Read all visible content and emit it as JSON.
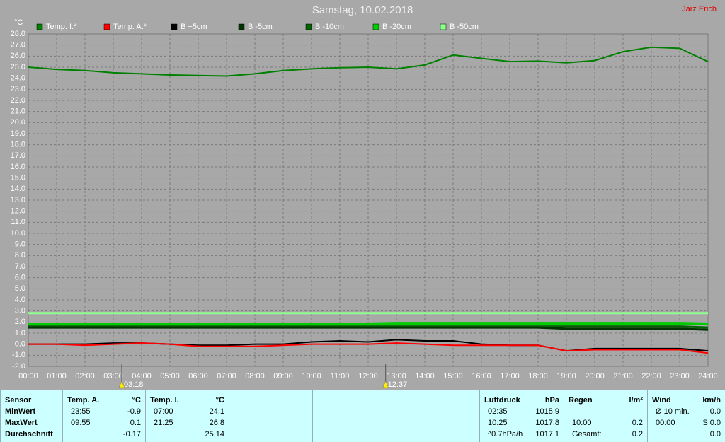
{
  "chart_data": {
    "type": "line",
    "title": "Samstag, 10.02.2018",
    "corner_label": "Jarz Erich",
    "y_unit": "°C",
    "x": [
      0,
      1,
      2,
      3,
      4,
      5,
      6,
      7,
      8,
      9,
      10,
      11,
      12,
      13,
      14,
      15,
      16,
      17,
      18,
      19,
      20,
      21,
      22,
      23,
      24
    ],
    "xlim": [
      0,
      24
    ],
    "xticks": [
      {
        "value": 0,
        "label": "00:00"
      },
      {
        "value": 1,
        "label": "01:00"
      },
      {
        "value": 2,
        "label": "02:00"
      },
      {
        "value": 3,
        "label": "03:00"
      },
      {
        "value": 4,
        "label": "04:00"
      },
      {
        "value": 5,
        "label": "05:00"
      },
      {
        "value": 6,
        "label": "06:00"
      },
      {
        "value": 7,
        "label": "07:00"
      },
      {
        "value": 8,
        "label": "08:00"
      },
      {
        "value": 9,
        "label": "09:00"
      },
      {
        "value": 10,
        "label": "10:00"
      },
      {
        "value": 11,
        "label": "11:00"
      },
      {
        "value": 12,
        "label": "12:00"
      },
      {
        "value": 13,
        "label": "13:00"
      },
      {
        "value": 14,
        "label": "14:00"
      },
      {
        "value": 15,
        "label": "15:00"
      },
      {
        "value": 16,
        "label": "16:00"
      },
      {
        "value": 17,
        "label": "17:00"
      },
      {
        "value": 18,
        "label": "18:00"
      },
      {
        "value": 19,
        "label": "19:00"
      },
      {
        "value": 20,
        "label": "20:00"
      },
      {
        "value": 21,
        "label": "21:00"
      },
      {
        "value": 22,
        "label": "22:00"
      },
      {
        "value": 23,
        "label": "23:00"
      },
      {
        "value": 24,
        "label": "24:00"
      }
    ],
    "ylim": [
      -2,
      28
    ],
    "yticks": [
      {
        "value": -2,
        "label": "-2.0"
      },
      {
        "value": -1,
        "label": "-1.0"
      },
      {
        "value": 0,
        "label": "0.0"
      },
      {
        "value": 1,
        "label": "1.0"
      },
      {
        "value": 2,
        "label": "2.0"
      },
      {
        "value": 3,
        "label": "3.0"
      },
      {
        "value": 4,
        "label": "4.0"
      },
      {
        "value": 5,
        "label": "5.0"
      },
      {
        "value": 6,
        "label": "6.0"
      },
      {
        "value": 7,
        "label": "7.0"
      },
      {
        "value": 8,
        "label": "8.0"
      },
      {
        "value": 9,
        "label": "9.0"
      },
      {
        "value": 10,
        "label": "10.0"
      },
      {
        "value": 11,
        "label": "11.0"
      },
      {
        "value": 12,
        "label": "12.0"
      },
      {
        "value": 13,
        "label": "13.0"
      },
      {
        "value": 14,
        "label": "14.0"
      },
      {
        "value": 15,
        "label": "15.0"
      },
      {
        "value": 16,
        "label": "16.0"
      },
      {
        "value": 17,
        "label": "17.0"
      },
      {
        "value": 18,
        "label": "18.0"
      },
      {
        "value": 19,
        "label": "19.0"
      },
      {
        "value": 20,
        "label": "20.0"
      },
      {
        "value": 21,
        "label": "21.0"
      },
      {
        "value": 22,
        "label": "22.0"
      },
      {
        "value": 23,
        "label": "23.0"
      },
      {
        "value": 24,
        "label": "24.0"
      },
      {
        "value": 25,
        "label": "25.0"
      },
      {
        "value": 26,
        "label": "26.0"
      },
      {
        "value": 27,
        "label": "27.0"
      },
      {
        "value": 28,
        "label": "28.0"
      }
    ],
    "grid": true,
    "legend": "top",
    "series": [
      {
        "name": "Temp. I.*",
        "color": "#008000",
        "values": [
          25.0,
          24.8,
          24.7,
          24.5,
          24.4,
          24.3,
          24.25,
          24.2,
          24.4,
          24.7,
          24.85,
          24.95,
          25.0,
          24.85,
          25.2,
          26.1,
          25.8,
          25.5,
          25.55,
          25.4,
          25.6,
          26.4,
          26.8,
          26.7,
          25.5
        ]
      },
      {
        "name": "Temp. A.*",
        "color": "#ff0000",
        "values": [
          0.0,
          0.0,
          -0.1,
          0.0,
          0.1,
          0.0,
          -0.2,
          -0.2,
          -0.2,
          -0.1,
          0.0,
          0.0,
          0.0,
          0.1,
          0.0,
          -0.1,
          -0.1,
          -0.1,
          -0.1,
          -0.6,
          -0.5,
          -0.5,
          -0.5,
          -0.5,
          -0.8
        ]
      },
      {
        "name": "B +5cm",
        "color": "#000000",
        "values": [
          0.0,
          0.0,
          0.0,
          0.1,
          0.1,
          0.0,
          -0.1,
          -0.1,
          0.0,
          0.0,
          0.2,
          0.3,
          0.2,
          0.4,
          0.3,
          0.3,
          0.0,
          -0.1,
          -0.1,
          -0.6,
          -0.4,
          -0.4,
          -0.4,
          -0.4,
          -0.6
        ]
      },
      {
        "name": "B -5cm",
        "color": "#003300",
        "values": [
          1.5,
          1.5,
          1.5,
          1.5,
          1.5,
          1.5,
          1.5,
          1.5,
          1.5,
          1.5,
          1.5,
          1.5,
          1.5,
          1.5,
          1.5,
          1.5,
          1.5,
          1.5,
          1.5,
          1.4,
          1.4,
          1.4,
          1.4,
          1.4,
          1.3
        ]
      },
      {
        "name": "B -10cm",
        "color": "#006400",
        "values": [
          1.6,
          1.6,
          1.6,
          1.6,
          1.6,
          1.6,
          1.6,
          1.6,
          1.6,
          1.6,
          1.6,
          1.6,
          1.6,
          1.6,
          1.6,
          1.6,
          1.6,
          1.6,
          1.6,
          1.6,
          1.6,
          1.6,
          1.6,
          1.6,
          1.5
        ]
      },
      {
        "name": "B -20cm",
        "color": "#00cc00",
        "values": [
          1.8,
          1.8,
          1.8,
          1.8,
          1.8,
          1.8,
          1.8,
          1.8,
          1.8,
          1.8,
          1.8,
          1.8,
          1.8,
          1.85,
          1.85,
          1.85,
          1.85,
          1.85,
          1.85,
          1.85,
          1.85,
          1.85,
          1.85,
          1.85,
          1.8
        ]
      },
      {
        "name": "B -50cm",
        "color": "#90ff90",
        "values": [
          2.8,
          2.8,
          2.8,
          2.8,
          2.8,
          2.8,
          2.8,
          2.8,
          2.8,
          2.8,
          2.8,
          2.8,
          2.8,
          2.8,
          2.8,
          2.8,
          2.8,
          2.8,
          2.8,
          2.8,
          2.8,
          2.8,
          2.8,
          2.8,
          2.8
        ]
      }
    ],
    "annotations": [
      {
        "x": 3.3,
        "text": "03:18"
      },
      {
        "x": 12.617,
        "text": "12:37"
      }
    ]
  },
  "table": {
    "columns": [
      {
        "header": "Sensor",
        "rows": [
          "MinWert",
          "MaxWert",
          "Durchschnitt"
        ]
      },
      {
        "header": "Temp. A.",
        "unit": "°C",
        "rows": [
          [
            "23:55",
            "-0.9"
          ],
          [
            "09:55",
            "0.1"
          ],
          [
            null,
            "-0.17"
          ]
        ]
      },
      {
        "header": "Temp. I.",
        "unit": "°C",
        "rows": [
          [
            "07:00",
            "24.1"
          ],
          [
            "21:25",
            "26.8"
          ],
          [
            null,
            "25.14"
          ]
        ]
      },
      {
        "header": "Luftdruck",
        "unit": "hPa",
        "rows": [
          [
            "02:35",
            "1015.9"
          ],
          [
            "10:25",
            "1017.8"
          ],
          [
            "^0.7hPa/h",
            "1017.1"
          ]
        ]
      },
      {
        "header": "Regen",
        "unit": "l/m²",
        "rows": [
          [
            null,
            null
          ],
          [
            "10:00",
            "0.2"
          ],
          [
            "Gesamt:",
            "0.2"
          ]
        ]
      },
      {
        "header": "Wind",
        "unit": "km/h",
        "rows": [
          [
            "Ø 10 min.",
            "0.0"
          ],
          [
            "00:00",
            "S 0.0"
          ],
          [
            null,
            "0.0"
          ]
        ]
      }
    ]
  }
}
